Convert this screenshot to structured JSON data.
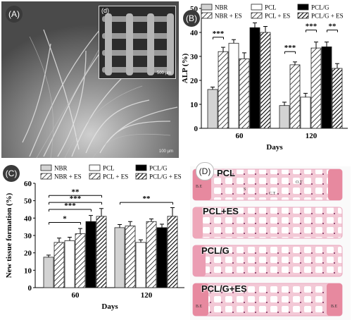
{
  "panel_a": {
    "badge": "(A)",
    "inset_label": "(d)",
    "inset_scale": "500 µm",
    "scale": "100 µm"
  },
  "panel_b": {
    "badge": "(B)"
  },
  "panel_c": {
    "badge": "(C)"
  },
  "panel_d": {
    "badge": "(D)",
    "samples": [
      "PCL",
      "PCL+ES",
      "PCL/G",
      "PCL/G+ES"
    ],
    "tissue_labels": {
      "bone_edge": "B.E",
      "connective": "C.T",
      "osteoid": "O.T",
      "scaffold": "S"
    }
  },
  "colors": {
    "bar_light": "#d3d3d3",
    "bar_white": "#ffffff",
    "bar_black": "#000000",
    "bar_edge": "#333333"
  },
  "chart_data": [
    {
      "type": "bar",
      "panel": "B",
      "ylabel": "ALP (%)",
      "xlabel": "Days",
      "categories": [
        "60",
        "120"
      ],
      "ylim": [
        0,
        50
      ],
      "yticks": [
        0,
        10,
        20,
        30,
        40,
        50
      ],
      "legend_placement": "top",
      "series": [
        {
          "name": "NBR",
          "pattern": "light",
          "values": [
            16.2,
            9.5
          ],
          "errors": [
            1.0,
            1.4
          ]
        },
        {
          "name": "NBR + ES",
          "pattern": "hatch",
          "values": [
            32.0,
            26.5
          ],
          "errors": [
            1.8,
            1.2
          ]
        },
        {
          "name": "PCL",
          "pattern": "white",
          "values": [
            35.5,
            13.0
          ],
          "errors": [
            1.5,
            1.6
          ]
        },
        {
          "name": "PCL + ES",
          "pattern": "hatch",
          "values": [
            29.0,
            33.5
          ],
          "errors": [
            2.5,
            2.5
          ]
        },
        {
          "name": "PCL/G",
          "pattern": "black",
          "values": [
            42.0,
            34.0
          ],
          "errors": [
            2.0,
            2.0
          ]
        },
        {
          "name": "PCL/G + ES",
          "pattern": "hatch-dense",
          "values": [
            40.0,
            25.0
          ],
          "errors": [
            2.5,
            2.0
          ]
        }
      ],
      "annotations": [
        {
          "text": "***",
          "day": "60",
          "from": 0,
          "to": 1,
          "y": 38
        },
        {
          "text": "***",
          "day": "120",
          "from": 0,
          "to": 1,
          "y": 32
        },
        {
          "text": "***",
          "day": "120",
          "from": 2,
          "to": 3,
          "y": 41
        },
        {
          "text": "**",
          "day": "120",
          "from": 4,
          "to": 5,
          "y": 41
        }
      ]
    },
    {
      "type": "bar",
      "panel": "C",
      "ylabel": "New tissue formation (%)",
      "xlabel": "Days",
      "categories": [
        "60",
        "120"
      ],
      "ylim": [
        0,
        60
      ],
      "yticks": [
        0,
        10,
        20,
        30,
        40,
        50,
        60
      ],
      "legend_placement": "top",
      "series": [
        {
          "name": "NBR",
          "pattern": "light",
          "values": [
            17.5,
            34.5
          ],
          "errors": [
            1.2,
            1.8
          ]
        },
        {
          "name": "NBR + ES",
          "pattern": "hatch",
          "values": [
            26.0,
            35.5
          ],
          "errors": [
            2.5,
            2.5
          ]
        },
        {
          "name": "PCL",
          "pattern": "white",
          "values": [
            27.0,
            26.0
          ],
          "errors": [
            2.0,
            1.5
          ]
        },
        {
          "name": "PCL + ES",
          "pattern": "hatch",
          "values": [
            31.0,
            38.0
          ],
          "errors": [
            3.0,
            1.5
          ]
        },
        {
          "name": "PCL/G",
          "pattern": "black",
          "values": [
            38.0,
            34.5
          ],
          "errors": [
            3.5,
            2.0
          ]
        },
        {
          "name": "PCL/G + ES",
          "pattern": "hatch-dense",
          "values": [
            41.0,
            41.0
          ],
          "errors": [
            4.5,
            5.0
          ]
        }
      ],
      "annotations": [
        {
          "text": "**",
          "day": "60",
          "from": 0,
          "to": 5,
          "y": 53
        },
        {
          "text": "***",
          "day": "60",
          "from": 0,
          "to": 5,
          "y": 49
        },
        {
          "text": "***",
          "day": "60",
          "from": 0,
          "to": 4,
          "y": 45
        },
        {
          "text": "*",
          "day": "60",
          "from": 0,
          "to": 3,
          "y": 37.5
        },
        {
          "text": "**",
          "day": "120",
          "from": 0,
          "to": 5,
          "y": 49
        }
      ]
    }
  ]
}
